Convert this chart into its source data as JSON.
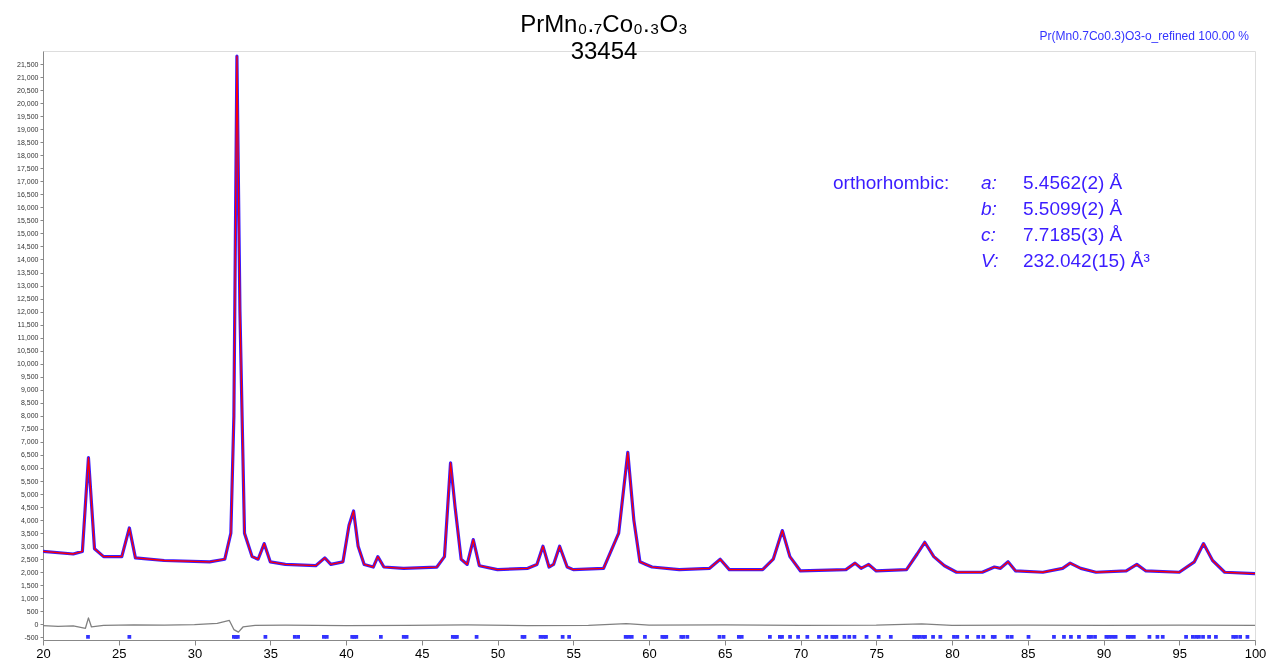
{
  "chart_data": {
    "type": "line",
    "title": "PrMn₀.₇Co₀.₃O₃",
    "subtitle": "33454",
    "xlim": [
      20,
      100
    ],
    "xticks": [
      20,
      25,
      30,
      35,
      40,
      45,
      50,
      55,
      60,
      65,
      70,
      75,
      80,
      85,
      90,
      95,
      100
    ],
    "ylim": [
      -600,
      22000
    ],
    "yticks": [
      -500,
      0,
      500,
      {
        "value": 1000,
        "label": "1,000"
      },
      {
        "value": 1500,
        "label": "1,500"
      },
      {
        "value": 2000,
        "label": "2,000"
      },
      {
        "value": 2500,
        "label": "2,500"
      },
      {
        "value": 3000,
        "label": "3,000"
      },
      {
        "value": 3500,
        "label": "3,500"
      },
      {
        "value": 4000,
        "label": "4,000"
      },
      {
        "value": 4500,
        "label": "4,500"
      },
      {
        "value": 5000,
        "label": "5,000"
      },
      {
        "value": 5500,
        "label": "5,500"
      },
      {
        "value": 6000,
        "label": "6,000"
      },
      {
        "value": 6500,
        "label": "6,500"
      },
      {
        "value": 7000,
        "label": "7,000"
      },
      {
        "value": 7500,
        "label": "7,500"
      },
      {
        "value": 8000,
        "label": "8,000"
      },
      {
        "value": 8500,
        "label": "8,500"
      },
      {
        "value": 9000,
        "label": "9,000"
      },
      {
        "value": 9500,
        "label": "9,500"
      },
      {
        "value": 10000,
        "label": "10,000"
      },
      {
        "value": 10500,
        "label": "10,500"
      },
      {
        "value": 11000,
        "label": "11,000"
      },
      {
        "value": 11500,
        "label": "11,500"
      },
      {
        "value": 12000,
        "label": "12,000"
      },
      {
        "value": 12500,
        "label": "12,500"
      },
      {
        "value": 13000,
        "label": "13,000"
      },
      {
        "value": 13500,
        "label": "13,500"
      },
      {
        "value": 14000,
        "label": "14,000"
      },
      {
        "value": 14500,
        "label": "14,500"
      },
      {
        "value": 15000,
        "label": "15,000"
      },
      {
        "value": 15500,
        "label": "15,500"
      },
      {
        "value": 16000,
        "label": "16,000"
      },
      {
        "value": 16500,
        "label": "16,500"
      },
      {
        "value": 17000,
        "label": "17,000"
      },
      {
        "value": 17500,
        "label": "17,500"
      },
      {
        "value": 18000,
        "label": "18,000"
      },
      {
        "value": 18500,
        "label": "18,500"
      },
      {
        "value": 19000,
        "label": "19,000"
      },
      {
        "value": 19500,
        "label": "19,500"
      },
      {
        "value": 20000,
        "label": "20,000"
      },
      {
        "value": 20500,
        "label": "20,500"
      },
      {
        "value": 21000,
        "label": "21,000"
      },
      {
        "value": 21500,
        "label": "21,500"
      }
    ],
    "x": [
      20,
      22,
      22.6,
      23.0,
      23.4,
      24,
      25.2,
      25.7,
      26.1,
      28,
      31,
      32,
      32.4,
      32.6,
      32.8,
      33.0,
      33.3,
      33.8,
      34.2,
      34.6,
      35.0,
      36,
      38,
      38.6,
      39,
      39.8,
      40.2,
      40.5,
      40.8,
      41.2,
      41.8,
      42.1,
      42.5,
      43.8,
      46,
      46.5,
      46.9,
      47.2,
      47.6,
      48.0,
      48.4,
      48.8,
      50,
      52,
      52.6,
      53.0,
      53.4,
      53.7,
      54.1,
      54.6,
      55,
      57,
      58.0,
      58.6,
      59.0,
      59.4,
      59.8,
      60.2,
      62,
      64,
      64.7,
      65.3,
      67.5,
      68.2,
      68.8,
      69.3,
      70,
      73,
      73.6,
      74.0,
      74.5,
      75,
      77,
      77.7,
      78.2,
      78.8,
      79.5,
      80.3,
      82,
      82.8,
      83.2,
      83.7,
      84.2,
      86,
      87.3,
      87.8,
      88.5,
      89.5,
      91.5,
      92.2,
      92.8,
      95,
      96.0,
      96.6,
      97.2,
      98,
      100
    ],
    "series": [
      {
        "name": null,
        "color": "#3a1cff",
        "values": [
          2800,
          2700,
          2800,
          6400,
          2900,
          2600,
          2600,
          3700,
          2550,
          2450,
          2400,
          2500,
          3500,
          8000,
          21800,
          12000,
          3500,
          2600,
          2500,
          3100,
          2400,
          2300,
          2250,
          2550,
          2300,
          2400,
          3800,
          4350,
          3000,
          2300,
          2200,
          2600,
          2200,
          2150,
          2200,
          2600,
          6200,
          4500,
          2500,
          2300,
          3250,
          2250,
          2100,
          2150,
          2300,
          3000,
          2200,
          2300,
          3000,
          2200,
          2100,
          2150,
          3500,
          6600,
          4000,
          2400,
          2300,
          2200,
          2100,
          2150,
          2500,
          2100,
          2100,
          2500,
          3600,
          2600,
          2050,
          2100,
          2350,
          2150,
          2300,
          2050,
          2100,
          2700,
          3150,
          2600,
          2250,
          2000,
          2000,
          2200,
          2150,
          2400,
          2050,
          2000,
          2150,
          2350,
          2150,
          2000,
          2050,
          2300,
          2050,
          2000,
          2400,
          3100,
          2450,
          2000,
          1950
        ]
      },
      {
        "name": null,
        "color": "#ff0000",
        "values": [
          2800,
          2700,
          2800,
          6400,
          2900,
          2600,
          2600,
          3700,
          2550,
          2450,
          2400,
          2500,
          3500,
          8000,
          21800,
          12000,
          3500,
          2600,
          2500,
          3100,
          2400,
          2300,
          2250,
          2550,
          2300,
          2400,
          3800,
          4350,
          3000,
          2300,
          2200,
          2600,
          2200,
          2150,
          2200,
          2600,
          6200,
          4500,
          2500,
          2300,
          3250,
          2250,
          2100,
          2150,
          2300,
          3000,
          2200,
          2300,
          3000,
          2200,
          2100,
          2150,
          3500,
          6600,
          4000,
          2400,
          2300,
          2200,
          2100,
          2150,
          2500,
          2100,
          2100,
          2500,
          3600,
          2600,
          2050,
          2100,
          2350,
          2150,
          2300,
          2050,
          2100,
          2700,
          3150,
          2600,
          2250,
          2000,
          2000,
          2200,
          2150,
          2400,
          2050,
          2000,
          2150,
          2350,
          2150,
          2000,
          2050,
          2300,
          2050,
          2000,
          2400,
          3100,
          2450,
          2000,
          1950
        ]
      },
      {
        "name": null,
        "color": "#808080",
        "x": [
          20,
          21,
          22,
          22.8,
          23.0,
          23.2,
          24,
          26,
          28,
          30,
          31.5,
          32.3,
          32.6,
          32.9,
          33.2,
          34,
          36,
          40,
          44,
          48,
          52,
          56,
          58.5,
          60,
          65,
          70,
          75,
          78,
          80,
          85,
          90,
          95,
          100
        ],
        "values": [
          -50,
          -80,
          -60,
          -150,
          250,
          -100,
          -40,
          -20,
          -30,
          -10,
          40,
          150,
          -200,
          -300,
          -100,
          -40,
          -30,
          -50,
          -40,
          -20,
          -50,
          -40,
          30,
          -30,
          -20,
          -40,
          -30,
          20,
          -40,
          -30,
          -40,
          -30,
          -40
        ]
      },
      {
        "name": "Pr(Mn0.7Co0.3)O3-o_refined  100.00 %",
        "type": "scatter",
        "marker": "square",
        "color": "#3333ff",
        "x": [
          22.97,
          25.7,
          32.6,
          32.73,
          32.86,
          34.68,
          36.62,
          36.84,
          38.54,
          38.73,
          40.41,
          40.54,
          40.68,
          42.3,
          43.81,
          44.0,
          47.05,
          47.19,
          47.32,
          48.62,
          51.65,
          51.78,
          52.84,
          53.05,
          53.2,
          54.3,
          54.73,
          58.46,
          58.65,
          58.86,
          59.73,
          60.88,
          61.01,
          61.14,
          62.13,
          62.26,
          62.53,
          64.65,
          64.92,
          65.93,
          66.12,
          67.98,
          68.64,
          68.78,
          69.31,
          69.84,
          70.45,
          71.22,
          71.7,
          72.1,
          72.23,
          72.37,
          72.9,
          73.22,
          73.56,
          74.36,
          75.16,
          75.96,
          77.5,
          77.69,
          77.87,
          78.09,
          78.22,
          78.75,
          79.23,
          80.13,
          80.35,
          81.0,
          81.73,
          82.07,
          82.69,
          82.82,
          83.67,
          83.94,
          85.05,
          86.73,
          87.39,
          87.85,
          88.38,
          89.02,
          89.18,
          89.44,
          90.19,
          90.37,
          90.59,
          90.8,
          91.6,
          91.78,
          92.0,
          93.03,
          93.56,
          93.91,
          95.45,
          95.9,
          96.12,
          96.3,
          96.57,
          96.97,
          97.42,
          98.56,
          98.75,
          99.02,
          99.5
        ],
        "values": [
          -480,
          -480,
          -480,
          -480,
          -480,
          -480,
          -480,
          -480,
          -480,
          -480,
          -480,
          -480,
          -480,
          -480,
          -480,
          -480,
          -480,
          -480,
          -480,
          -480,
          -480,
          -480,
          -480,
          -480,
          -480,
          -480,
          -480,
          -480,
          -480,
          -480,
          -480,
          -480,
          -480,
          -480,
          -480,
          -480,
          -480,
          -480,
          -480,
          -480,
          -480,
          -480,
          -480,
          -480,
          -480,
          -480,
          -480,
          -480,
          -480,
          -480,
          -480,
          -480,
          -480,
          -480,
          -480,
          -480,
          -480,
          -480,
          -480,
          -480,
          -480,
          -480,
          -480,
          -480,
          -480,
          -480,
          -480,
          -480,
          -480,
          -480,
          -480,
          -480,
          -480,
          -480,
          -480,
          -480,
          -480,
          -480,
          -480,
          -480,
          -480,
          -480,
          -480,
          -480,
          -480,
          -480,
          -480,
          -480,
          -480,
          -480,
          -480,
          -480,
          -480,
          -480,
          -480,
          -480,
          -480,
          -480,
          -480,
          -480,
          -480,
          -480,
          -480
        ]
      }
    ],
    "grid": false,
    "annotations": [
      "orthorhombic:",
      "a:",
      "5.4562(2) Å",
      "b:",
      "5.5099(2) Å",
      "c:",
      "7.7185(3) Å",
      "V:",
      "232.042(15) Å³"
    ]
  }
}
